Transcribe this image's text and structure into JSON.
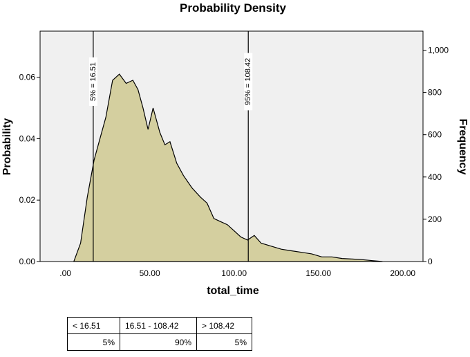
{
  "chart_data": {
    "type": "area",
    "title": "Probability Density",
    "xlabel": "total_time",
    "ylabel": "Probability",
    "y2label": "Frequency",
    "xlim": [
      -15,
      212
    ],
    "ylim": [
      0,
      0.075
    ],
    "y2lim": [
      0,
      1090
    ],
    "xticks": [
      0,
      50,
      100,
      150,
      200
    ],
    "xtick_labels": [
      ".00",
      "50.00",
      "100.00",
      "150.00",
      "200.00"
    ],
    "yticks": [
      0,
      0.02,
      0.04,
      0.06
    ],
    "ytick_labels": [
      "0.00",
      "0.02",
      "0.04",
      "0.06"
    ],
    "y2ticks": [
      0,
      200,
      400,
      600,
      800,
      1000
    ],
    "y2tick_labels": [
      "0",
      "200",
      "400",
      "600",
      "800",
      "1,000"
    ],
    "grid": false,
    "fill_color": "#d4cf9f",
    "plot_bg": "#f0f0f0",
    "x": [
      5,
      9,
      13,
      17,
      20,
      24,
      28,
      32,
      36,
      40,
      43,
      46,
      49,
      52,
      56,
      59,
      62,
      66,
      70,
      75,
      80,
      84,
      88,
      92,
      96,
      100,
      104,
      108,
      112,
      116,
      122,
      128,
      134,
      140,
      146,
      152,
      158,
      164,
      170,
      176,
      182,
      188
    ],
    "y": [
      0.0,
      0.006,
      0.021,
      0.033,
      0.039,
      0.047,
      0.059,
      0.061,
      0.058,
      0.059,
      0.056,
      0.05,
      0.043,
      0.05,
      0.042,
      0.038,
      0.039,
      0.032,
      0.028,
      0.024,
      0.021,
      0.019,
      0.014,
      0.013,
      0.012,
      0.01,
      0.008,
      0.007,
      0.0085,
      0.006,
      0.005,
      0.004,
      0.0035,
      0.003,
      0.0025,
      0.0015,
      0.0015,
      0.001,
      0.0008,
      0.0006,
      0.0003,
      0.0
    ],
    "markers": [
      {
        "x": 16.51,
        "label": "5% = 16.51"
      },
      {
        "x": 108.42,
        "label": "95% = 108.42"
      }
    ]
  },
  "summary": {
    "headers": [
      "< 16.51",
      "16.51 - 108.42",
      "> 108.42"
    ],
    "values": [
      "5%",
      "90%",
      "5%"
    ]
  }
}
